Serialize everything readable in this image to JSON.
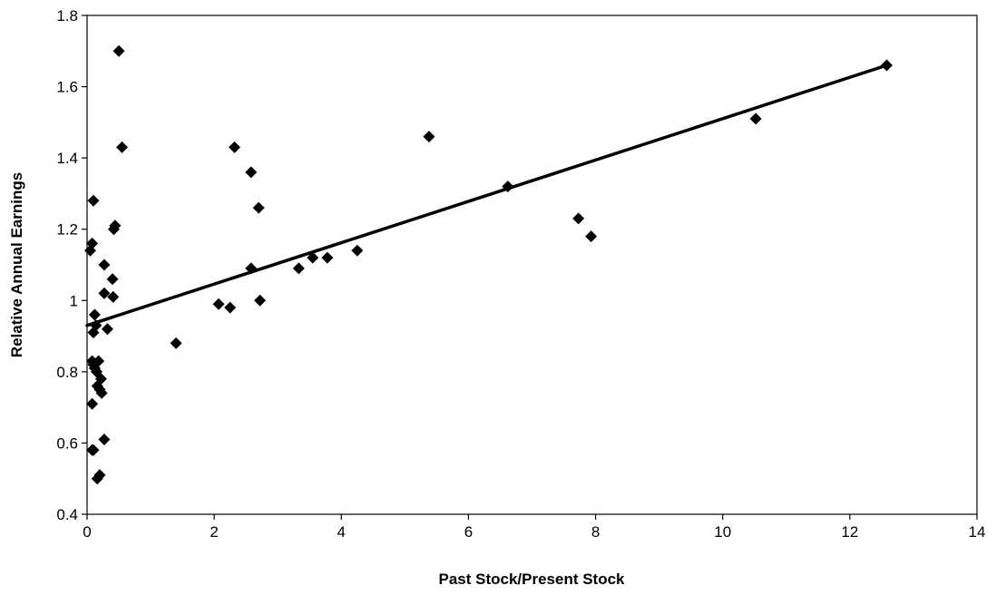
{
  "chart_data": {
    "type": "scatter",
    "xlabel": "Past Stock/Present Stock",
    "ylabel": "Relative Annual Earnings",
    "xlim": [
      0,
      14
    ],
    "ylim": [
      0.4,
      1.8
    ],
    "x_ticks": [
      0,
      2,
      4,
      6,
      8,
      10,
      12,
      14
    ],
    "y_ticks": [
      0.4,
      0.6,
      0.8,
      1.0,
      1.2,
      1.4,
      1.6,
      1.8
    ],
    "y_tick_labels": [
      "0.4",
      "0.6",
      "0.8",
      "1",
      "1.2",
      "1.4",
      "1.6",
      "1.8"
    ],
    "grid": false,
    "legend": "none",
    "marker": "diamond",
    "marker_color": "#000000",
    "trendline": {
      "type": "linear",
      "from": [
        0.0,
        0.93
      ],
      "to": [
        12.58,
        1.66
      ],
      "color": "#000000"
    },
    "points": [
      [
        0.05,
        1.14
      ],
      [
        0.08,
        1.16
      ],
      [
        0.1,
        1.28
      ],
      [
        0.08,
        0.83
      ],
      [
        0.1,
        0.82
      ],
      [
        0.12,
        0.81
      ],
      [
        0.1,
        0.91
      ],
      [
        0.12,
        0.96
      ],
      [
        0.14,
        0.93
      ],
      [
        0.08,
        0.71
      ],
      [
        0.12,
        0.82
      ],
      [
        0.15,
        0.8
      ],
      [
        0.18,
        0.83
      ],
      [
        0.16,
        0.76
      ],
      [
        0.2,
        0.75
      ],
      [
        0.22,
        0.78
      ],
      [
        0.23,
        0.74
      ],
      [
        0.08,
        0.58
      ],
      [
        0.1,
        0.58
      ],
      [
        0.27,
        0.61
      ],
      [
        0.16,
        0.5
      ],
      [
        0.2,
        0.51
      ],
      [
        0.27,
        1.02
      ],
      [
        0.27,
        1.1
      ],
      [
        0.32,
        0.92
      ],
      [
        0.4,
        1.06
      ],
      [
        0.41,
        1.01
      ],
      [
        0.42,
        1.2
      ],
      [
        0.44,
        1.21
      ],
      [
        0.5,
        1.7
      ],
      [
        0.55,
        1.43
      ],
      [
        1.4,
        0.88
      ],
      [
        2.07,
        0.99
      ],
      [
        2.25,
        0.98
      ],
      [
        2.32,
        1.43
      ],
      [
        2.58,
        1.36
      ],
      [
        2.58,
        1.09
      ],
      [
        2.7,
        1.26
      ],
      [
        2.72,
        1.0
      ],
      [
        3.33,
        1.09
      ],
      [
        3.55,
        1.12
      ],
      [
        3.78,
        1.12
      ],
      [
        4.25,
        1.14
      ],
      [
        5.38,
        1.46
      ],
      [
        6.62,
        1.32
      ],
      [
        7.73,
        1.23
      ],
      [
        7.93,
        1.18
      ],
      [
        10.52,
        1.51
      ],
      [
        12.58,
        1.66
      ]
    ]
  }
}
